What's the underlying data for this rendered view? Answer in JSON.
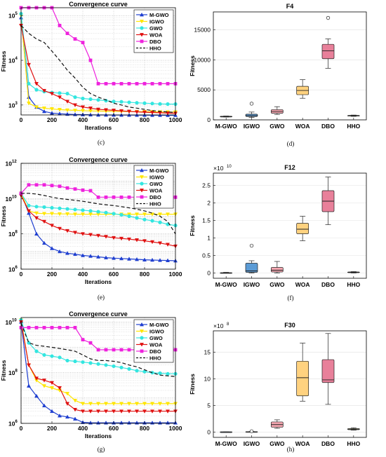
{
  "chart_data": [
    {
      "id": "c",
      "type": "line",
      "title": "Convergence curve",
      "xlabel": "Iterations",
      "ylabel": "Fitness",
      "caption": "(c)",
      "xlim": [
        0,
        1000
      ],
      "ylim": [
        600,
        150000
      ],
      "yscale": "log",
      "yticks": [
        1000,
        10000,
        100000
      ],
      "ytick_labels": [
        [
          "10",
          "3"
        ],
        [
          "10",
          "4"
        ],
        [
          "10",
          "5"
        ]
      ],
      "xticks": [
        0,
        200,
        400,
        600,
        800,
        1000
      ],
      "grid": true,
      "legend_position": "top-right",
      "x": [
        0,
        50,
        100,
        150,
        200,
        250,
        300,
        350,
        400,
        450,
        500,
        550,
        600,
        650,
        700,
        750,
        800,
        850,
        900,
        950,
        1000
      ],
      "series": [
        {
          "name": "M-GWO",
          "color": "#1f3fd0",
          "marker": "triangle",
          "dash": "",
          "values": [
            90000,
            1500,
            900,
            720,
            660,
            640,
            625,
            615,
            610,
            605,
            600,
            600,
            598,
            596,
            595,
            594,
            593,
            592,
            591,
            590,
            590
          ]
        },
        {
          "name": "IGWO",
          "color": "#ffe600",
          "marker": "triangle-down",
          "dash": "",
          "values": [
            100000,
            1100,
            900,
            850,
            820,
            790,
            770,
            760,
            750,
            740,
            735,
            730,
            725,
            720,
            715,
            712,
            710,
            705,
            700,
            698,
            695
          ]
        },
        {
          "name": "GWO",
          "color": "#33e6e0",
          "marker": "circle",
          "dash": "",
          "values": [
            110000,
            3000,
            2200,
            2000,
            1900,
            1850,
            1800,
            1500,
            1400,
            1350,
            1300,
            1250,
            1200,
            1180,
            1150,
            1120,
            1100,
            1080,
            1060,
            1050,
            1050
          ]
        },
        {
          "name": "WOA",
          "color": "#e01010",
          "marker": "triangle-down",
          "dash": "",
          "values": [
            60000,
            8000,
            3000,
            2100,
            1800,
            1500,
            1200,
            1000,
            900,
            850,
            800,
            780,
            760,
            740,
            720,
            700,
            690,
            680,
            670,
            660,
            650
          ]
        },
        {
          "name": "DBO",
          "color": "#ee22dd",
          "marker": "square",
          "dash": "",
          "values": [
            150000,
            150000,
            150000,
            150000,
            150000,
            60000,
            40000,
            30000,
            25000,
            10000,
            3000,
            3000,
            3000,
            3000,
            3000,
            3000,
            3000,
            3000,
            3000,
            3000,
            3000
          ]
        },
        {
          "name": "HHO",
          "color": "#111111",
          "marker": "",
          "dash": "5,3",
          "values": [
            60000,
            40000,
            30000,
            25000,
            16000,
            10000,
            6000,
            4000,
            2500,
            1800,
            1500,
            1300,
            1100,
            1000,
            900,
            850,
            800,
            750,
            720,
            700,
            680
          ]
        }
      ]
    },
    {
      "id": "d",
      "type": "box",
      "title": "F4",
      "xlabel": "",
      "ylabel": "Fitness",
      "caption": "(d)",
      "exponent": "",
      "ylim": [
        0,
        18000
      ],
      "yticks": [
        0,
        5000,
        10000,
        15000
      ],
      "ytick_labels": [
        "0",
        "5000",
        "10000",
        "15000"
      ],
      "categories": [
        "M-GWO",
        "IGWO",
        "GWO",
        "WOA",
        "DBO",
        "HHO"
      ],
      "colors": [
        "#a9c4e0",
        "#5b9bd5",
        "#f4a6b0",
        "#ffd27f",
        "#e8809a",
        "#ede9a0"
      ],
      "boxes": [
        {
          "whisker_low": 480,
          "q1": 520,
          "median": 560,
          "q3": 600,
          "whisker_high": 640,
          "outliers": []
        },
        {
          "whisker_low": 400,
          "q1": 550,
          "median": 700,
          "q3": 950,
          "whisker_high": 1300,
          "outliers": [
            2700
          ]
        },
        {
          "whisker_low": 900,
          "q1": 1100,
          "median": 1400,
          "q3": 1700,
          "whisker_high": 2200,
          "outliers": []
        },
        {
          "whisker_low": 3600,
          "q1": 4200,
          "median": 4900,
          "q3": 5600,
          "whisker_high": 6700,
          "outliers": []
        },
        {
          "whisker_low": 8600,
          "q1": 10200,
          "median": 11500,
          "q3": 12600,
          "whisker_high": 13500,
          "outliers": [
            17000
          ]
        },
        {
          "whisker_low": 580,
          "q1": 650,
          "median": 700,
          "q3": 750,
          "whisker_high": 800,
          "outliers": []
        }
      ]
    },
    {
      "id": "e",
      "type": "line",
      "title": "Convergence curve",
      "xlabel": "Iterations",
      "ylabel": "Fitness",
      "caption": "(e)",
      "xlim": [
        0,
        1000
      ],
      "ylim": [
        1000000,
        1000000000000
      ],
      "yscale": "log",
      "yticks": [
        1000000,
        100000000,
        10000000000,
        1000000000000
      ],
      "ytick_labels": [
        [
          "10",
          "6"
        ],
        [
          "10",
          "8"
        ],
        [
          "10",
          "10"
        ],
        [
          "10",
          "12"
        ]
      ],
      "xticks": [
        0,
        200,
        400,
        600,
        800,
        1000
      ],
      "grid": true,
      "legend_position": "top-right",
      "x": [
        0,
        50,
        100,
        150,
        200,
        250,
        300,
        350,
        400,
        450,
        500,
        550,
        600,
        650,
        700,
        750,
        800,
        850,
        900,
        950,
        1000
      ],
      "series": [
        {
          "name": "M-GWO",
          "color": "#1f3fd0",
          "marker": "triangle",
          "dash": "",
          "values": [
            20000000000,
            1500000000,
            100000000,
            30000000,
            15000000,
            10000000,
            8000000,
            7000000,
            6000000,
            5500000,
            5000000,
            4500000,
            4200000,
            4000000,
            3800000,
            3600000,
            3400000,
            3300000,
            3200000,
            3100000,
            3000000
          ]
        },
        {
          "name": "IGWO",
          "color": "#ffe600",
          "marker": "triangle-down",
          "dash": "",
          "values": [
            20000000000,
            2000000000,
            1500000000,
            1400000000,
            1400000000,
            1350000000,
            1350000000,
            1300000000,
            1300000000,
            1300000000,
            1300000000,
            1300000000,
            1300000000,
            1300000000,
            1300000000,
            1300000000,
            1300000000,
            1300000000,
            1300000000,
            1300000000,
            1300000000
          ]
        },
        {
          "name": "GWO",
          "color": "#33e6e0",
          "marker": "circle",
          "dash": "",
          "values": [
            20000000000,
            4000000000,
            3500000000,
            3300000000,
            3000000000,
            2800000000,
            2600000000,
            2400000000,
            2200000000,
            2000000000,
            1800000000,
            1600000000,
            1400000000,
            1200000000,
            1000000000,
            800000000,
            650000000,
            550000000,
            450000000,
            350000000,
            300000000
          ]
        },
        {
          "name": "WOA",
          "color": "#e01010",
          "marker": "triangle-down",
          "dash": "",
          "values": [
            15000000000,
            2000000000,
            800000000,
            500000000,
            300000000,
            200000000,
            150000000,
            120000000,
            100000000,
            90000000,
            80000000,
            70000000,
            60000000,
            55000000,
            50000000,
            45000000,
            40000000,
            35000000,
            30000000,
            25000000,
            20000000
          ]
        },
        {
          "name": "DBO",
          "color": "#ee22dd",
          "marker": "square",
          "dash": "",
          "values": [
            20000000000,
            60000000000,
            60000000000,
            60000000000,
            55000000000,
            50000000000,
            40000000000,
            35000000000,
            30000000000,
            28000000000,
            12000000000,
            12000000000,
            12000000000,
            12000000000,
            12000000000,
            12000000000,
            12000000000,
            12000000000,
            12000000000,
            12000000000,
            12000000000
          ]
        },
        {
          "name": "HHO",
          "color": "#111111",
          "marker": "",
          "dash": "5,3",
          "values": [
            20000000000,
            20000000000,
            18000000000,
            15000000000,
            12000000000,
            10000000000,
            9000000000,
            8000000000,
            7000000000,
            6000000000,
            5000000000,
            4500000000,
            4000000000,
            3500000000,
            3000000000,
            2500000000,
            2000000000,
            1500000000,
            1000000000,
            500000000,
            100000000
          ]
        }
      ]
    },
    {
      "id": "f",
      "type": "box",
      "title": "F12",
      "xlabel": "",
      "ylabel": "Fitness",
      "caption": "(f)",
      "exponent": "10",
      "ylim": [
        -0.15,
        2.85
      ],
      "yticks": [
        0,
        0.5,
        1,
        1.5,
        2,
        2.5
      ],
      "ytick_labels": [
        "0",
        "0.5",
        "1",
        "1.5",
        "2",
        "2.5"
      ],
      "categories": [
        "M-GWO",
        "IGWO",
        "GWO",
        "WOA",
        "DBO",
        "HHO"
      ],
      "colors": [
        "#a9c4e0",
        "#5b9bd5",
        "#f4a6b0",
        "#ffd27f",
        "#e8809a",
        "#ede9a0"
      ],
      "boxes": [
        {
          "whisker_low": 0,
          "q1": 0,
          "median": 0,
          "q3": 0.01,
          "whisker_high": 0.02,
          "outliers": []
        },
        {
          "whisker_low": 0,
          "q1": 0.02,
          "median": 0.06,
          "q3": 0.28,
          "whisker_high": 0.35,
          "outliers": [
            0.78
          ]
        },
        {
          "whisker_low": 0,
          "q1": 0.03,
          "median": 0.08,
          "q3": 0.16,
          "whisker_high": 0.33,
          "outliers": []
        },
        {
          "whisker_low": 0.92,
          "q1": 1.12,
          "median": 1.25,
          "q3": 1.42,
          "whisker_high": 1.62,
          "outliers": []
        },
        {
          "whisker_low": 1.38,
          "q1": 1.75,
          "median": 2.05,
          "q3": 2.35,
          "whisker_high": 2.74,
          "outliers": []
        },
        {
          "whisker_low": 0,
          "q1": 0.01,
          "median": 0.02,
          "q3": 0.03,
          "whisker_high": 0.04,
          "outliers": []
        }
      ]
    },
    {
      "id": "g",
      "type": "line",
      "title": "Convergence curve",
      "xlabel": "Iterations",
      "ylabel": "Fitness",
      "caption": "(g)",
      "xlim": [
        0,
        1000
      ],
      "ylim": [
        1000000,
        15000000000
      ],
      "yscale": "log",
      "yticks": [
        1000000,
        100000000,
        10000000000
      ],
      "ytick_labels": [
        [
          "10",
          "6"
        ],
        [
          "10",
          "8"
        ],
        [
          "10",
          "10"
        ]
      ],
      "xticks": [
        0,
        200,
        400,
        600,
        800,
        1000
      ],
      "grid": true,
      "legend_position": "top-right",
      "x": [
        0,
        50,
        100,
        150,
        200,
        250,
        300,
        350,
        400,
        450,
        500,
        550,
        600,
        650,
        700,
        750,
        800,
        850,
        900,
        950,
        1000
      ],
      "series": [
        {
          "name": "M-GWO",
          "color": "#1f3fd0",
          "marker": "triangle",
          "dash": "",
          "values": [
            10000000000,
            30000000,
            12000000,
            5000000,
            3000000,
            2000000,
            1800000,
            1500000,
            1100000,
            1050000,
            1050000,
            1050000,
            1050000,
            1050000,
            1050000,
            1050000,
            1050000,
            1050000,
            1050000,
            1050000,
            1050000
          ]
        },
        {
          "name": "IGWO",
          "color": "#ffe600",
          "marker": "triangle-down",
          "dash": "",
          "values": [
            12000000000,
            200000000,
            50000000,
            30000000,
            25000000,
            20000000,
            15000000,
            8000000,
            6000000,
            6000000,
            6000000,
            6000000,
            6000000,
            6000000,
            6000000,
            6000000,
            6000000,
            6000000,
            6000000,
            6000000,
            6000000
          ]
        },
        {
          "name": "GWO",
          "color": "#33e6e0",
          "marker": "circle",
          "dash": "",
          "values": [
            12000000000,
            1500000000,
            700000000,
            500000000,
            450000000,
            400000000,
            300000000,
            280000000,
            260000000,
            240000000,
            220000000,
            200000000,
            180000000,
            160000000,
            140000000,
            120000000,
            110000000,
            100000000,
            95000000,
            90000000,
            90000000
          ]
        },
        {
          "name": "WOA",
          "color": "#e01010",
          "marker": "triangle-down",
          "dash": "",
          "values": [
            10000000000,
            200000000,
            60000000,
            50000000,
            40000000,
            25000000,
            6000000,
            3500000,
            3000000,
            3000000,
            3000000,
            3000000,
            3000000,
            3000000,
            3000000,
            3000000,
            3000000,
            3000000,
            3000000,
            3000000,
            3000000
          ]
        },
        {
          "name": "DBO",
          "color": "#ee22dd",
          "marker": "square",
          "dash": "",
          "values": [
            6000000000,
            6000000000,
            6000000000,
            6000000000,
            6000000000,
            6000000000,
            6000000000,
            6000000000,
            2000000000,
            1500000000,
            800000000,
            800000000,
            800000000,
            800000000,
            800000000,
            800000000,
            800000000,
            800000000,
            800000000,
            800000000,
            800000000
          ]
        },
        {
          "name": "HHO",
          "color": "#111111",
          "marker": "",
          "dash": "5,3",
          "values": [
            9000000000,
            1500000000,
            1200000000,
            1100000000,
            1000000000,
            900000000,
            800000000,
            700000000,
            500000000,
            350000000,
            300000000,
            300000000,
            280000000,
            250000000,
            200000000,
            170000000,
            130000000,
            100000000,
            80000000,
            75000000,
            70000000
          ]
        }
      ]
    },
    {
      "id": "h",
      "type": "box",
      "title": "F30",
      "xlabel": "",
      "ylabel": "Fitness",
      "caption": "(h)",
      "exponent": "8",
      "ylim": [
        -1,
        19
      ],
      "yticks": [
        0,
        5,
        10,
        15
      ],
      "ytick_labels": [
        "0",
        "5",
        "10",
        "15"
      ],
      "categories": [
        "M-GWO",
        "IGWO",
        "GWO",
        "WOA",
        "DBO",
        "HHO"
      ],
      "colors": [
        "#a9c4e0",
        "#5b9bd5",
        "#f4a6b0",
        "#ffd27f",
        "#e8809a",
        "#ede9a0"
      ],
      "boxes": [
        {
          "whisker_low": 0,
          "q1": 0,
          "median": 0.02,
          "q3": 0.04,
          "whisker_high": 0.05,
          "outliers": []
        },
        {
          "whisker_low": 0,
          "q1": 0.02,
          "median": 0.05,
          "q3": 0.08,
          "whisker_high": 0.1,
          "outliers": [
            0.15
          ]
        },
        {
          "whisker_low": 0.7,
          "q1": 0.9,
          "median": 1.4,
          "q3": 1.9,
          "whisker_high": 2.3,
          "outliers": []
        },
        {
          "whisker_low": 5.8,
          "q1": 6.8,
          "median": 10.2,
          "q3": 13.3,
          "whisker_high": 16.7,
          "outliers": []
        },
        {
          "whisker_low": 5.2,
          "q1": 9.3,
          "median": 9.8,
          "q3": 13.6,
          "whisker_high": 18.5,
          "outliers": []
        },
        {
          "whisker_low": 0.35,
          "q1": 0.45,
          "median": 0.55,
          "q3": 0.65,
          "whisker_high": 0.8,
          "outliers": []
        }
      ]
    }
  ]
}
